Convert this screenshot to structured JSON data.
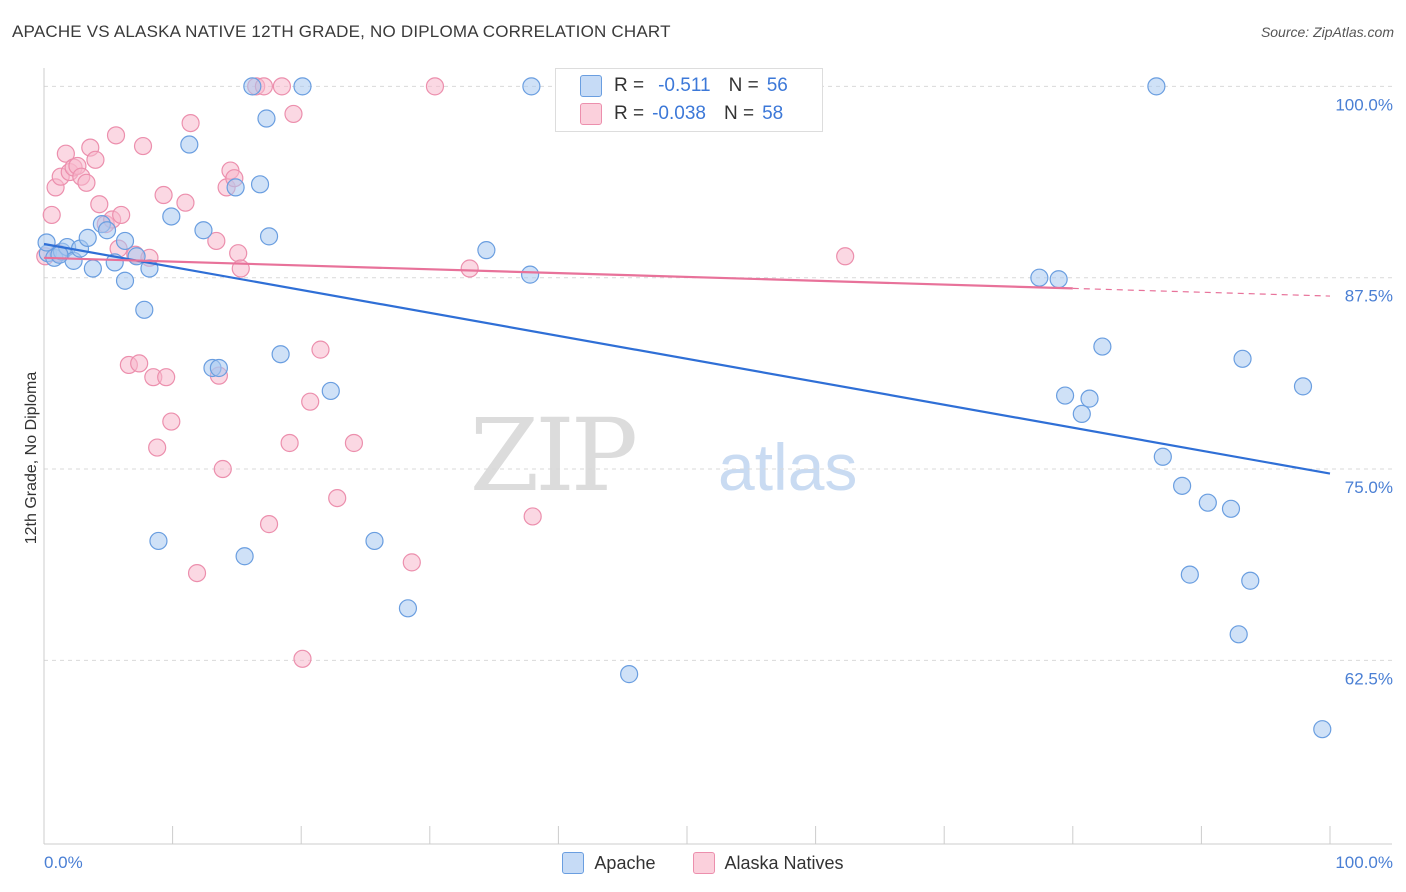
{
  "title": "APACHE VS ALASKA NATIVE 12TH GRADE, NO DIPLOMA CORRELATION CHART",
  "source": "Source: ZipAtlas.com",
  "watermark": {
    "zip": "ZIP",
    "atlas": "atlas"
  },
  "colors": {
    "apache_fill": "#a8c8f0",
    "apache_stroke": "#6a9ee0",
    "apache_line": "#2f6fd6",
    "alaska_fill": "#f7b8cc",
    "alaska_stroke": "#ec8fad",
    "alaska_line": "#e8729a",
    "grid": "#d9d9d9",
    "tick_label": "#4a7fd4"
  },
  "stats": {
    "rows": [
      {
        "r_label": "R =",
        "r_value": "-0.511",
        "n_label": "N =",
        "n_value": "56"
      },
      {
        "r_label": "R =",
        "r_value": "-0.038",
        "n_label": "N =",
        "n_value": "58"
      }
    ]
  },
  "legend": [
    {
      "name": "Apache"
    },
    {
      "name": "Alaska Natives"
    }
  ],
  "chart_data": {
    "type": "scatter",
    "ylabel": "12th Grade, No Diploma",
    "x_tick_labels": [
      "0.0%",
      "100.0%"
    ],
    "y_ticks": [
      {
        "value": 100.0,
        "label": "100.0%"
      },
      {
        "value": 87.5,
        "label": "87.5%"
      },
      {
        "value": 75.0,
        "label": "75.0%"
      },
      {
        "value": 62.5,
        "label": "62.5%"
      }
    ],
    "xlim": [
      0,
      100
    ],
    "ylim": [
      50.5,
      101.2
    ],
    "grid": true,
    "legend_position": "bottom",
    "series": [
      {
        "name": "Apache",
        "points": [
          [
            0.3,
            89.1
          ],
          [
            0.8,
            88.8
          ],
          [
            1.4,
            89.2
          ],
          [
            1.8,
            89.5
          ],
          [
            2.3,
            88.6
          ],
          [
            2.8,
            89.4
          ],
          [
            3.4,
            90.1
          ],
          [
            3.8,
            88.1
          ],
          [
            4.5,
            91.0
          ],
          [
            4.9,
            90.6
          ],
          [
            5.5,
            88.5
          ],
          [
            6.3,
            89.9
          ],
          [
            6.3,
            87.3
          ],
          [
            7.2,
            88.9
          ],
          [
            7.8,
            85.4
          ],
          [
            8.2,
            88.1
          ],
          [
            8.9,
            70.3
          ],
          [
            9.9,
            91.5
          ],
          [
            11.3,
            96.2
          ],
          [
            12.4,
            90.6
          ],
          [
            13.1,
            81.6
          ],
          [
            13.6,
            81.6
          ],
          [
            14.9,
            93.4
          ],
          [
            15.6,
            69.3
          ],
          [
            16.2,
            100.0
          ],
          [
            16.8,
            93.6
          ],
          [
            17.3,
            97.9
          ],
          [
            17.5,
            90.2
          ],
          [
            18.4,
            82.5
          ],
          [
            20.1,
            100.0
          ],
          [
            22.3,
            80.1
          ],
          [
            25.7,
            70.3
          ],
          [
            28.3,
            65.9
          ],
          [
            34.4,
            89.3
          ],
          [
            37.8,
            87.7
          ],
          [
            37.9,
            100.0
          ],
          [
            45.5,
            61.6
          ],
          [
            77.4,
            87.5
          ],
          [
            78.9,
            87.4
          ],
          [
            79.4,
            79.8
          ],
          [
            80.7,
            78.6
          ],
          [
            81.3,
            79.6
          ],
          [
            82.3,
            83.0
          ],
          [
            86.5,
            100.0
          ],
          [
            87.0,
            75.8
          ],
          [
            88.5,
            73.9
          ],
          [
            89.1,
            68.1
          ],
          [
            90.5,
            72.8
          ],
          [
            92.3,
            72.4
          ],
          [
            92.9,
            64.2
          ],
          [
            93.2,
            82.2
          ],
          [
            93.8,
            67.7
          ],
          [
            97.9,
            80.4
          ],
          [
            99.4,
            58.0
          ],
          [
            0.2,
            89.8
          ],
          [
            1.2,
            89.0
          ]
        ]
      },
      {
        "name": "Alaska Natives",
        "points": [
          [
            0.6,
            91.6
          ],
          [
            0.9,
            93.4
          ],
          [
            1.3,
            94.1
          ],
          [
            1.7,
            95.6
          ],
          [
            2.0,
            94.4
          ],
          [
            2.3,
            94.7
          ],
          [
            2.6,
            94.8
          ],
          [
            2.9,
            94.1
          ],
          [
            3.3,
            93.7
          ],
          [
            3.6,
            96.0
          ],
          [
            4.0,
            95.2
          ],
          [
            4.3,
            92.3
          ],
          [
            4.8,
            91.0
          ],
          [
            5.3,
            91.3
          ],
          [
            5.6,
            96.8
          ],
          [
            5.8,
            89.4
          ],
          [
            6.0,
            91.6
          ],
          [
            6.6,
            81.8
          ],
          [
            7.1,
            89.0
          ],
          [
            7.4,
            81.9
          ],
          [
            7.7,
            96.1
          ],
          [
            8.2,
            88.8
          ],
          [
            8.5,
            81.0
          ],
          [
            8.8,
            76.4
          ],
          [
            9.3,
            92.9
          ],
          [
            9.5,
            81.0
          ],
          [
            9.9,
            78.1
          ],
          [
            11.0,
            92.4
          ],
          [
            11.4,
            97.6
          ],
          [
            11.9,
            68.2
          ],
          [
            13.4,
            89.9
          ],
          [
            13.6,
            81.1
          ],
          [
            13.9,
            75.0
          ],
          [
            14.2,
            93.4
          ],
          [
            14.5,
            94.5
          ],
          [
            14.8,
            94.0
          ],
          [
            15.1,
            89.1
          ],
          [
            15.3,
            88.1
          ],
          [
            16.5,
            100.0
          ],
          [
            17.1,
            100.0
          ],
          [
            17.5,
            71.4
          ],
          [
            18.5,
            100.0
          ],
          [
            19.1,
            76.7
          ],
          [
            19.4,
            98.2
          ],
          [
            20.1,
            62.6
          ],
          [
            20.7,
            79.4
          ],
          [
            21.5,
            82.8
          ],
          [
            22.8,
            73.1
          ],
          [
            24.1,
            76.7
          ],
          [
            28.6,
            68.9
          ],
          [
            30.4,
            100.0
          ],
          [
            33.1,
            88.1
          ],
          [
            38.0,
            71.9
          ],
          [
            41.0,
            100.0
          ],
          [
            41.6,
            100.0
          ],
          [
            62.3,
            88.9
          ],
          [
            0.1,
            88.9
          ],
          [
            1.1,
            89.1
          ]
        ]
      }
    ],
    "trend_lines": [
      {
        "series": "Apache",
        "x": [
          0,
          100
        ],
        "y": [
          89.7,
          74.7
        ]
      },
      {
        "series": "Alaska Natives",
        "x": [
          0,
          80,
          100
        ],
        "y": [
          88.8,
          86.8,
          86.3
        ]
      }
    ]
  }
}
